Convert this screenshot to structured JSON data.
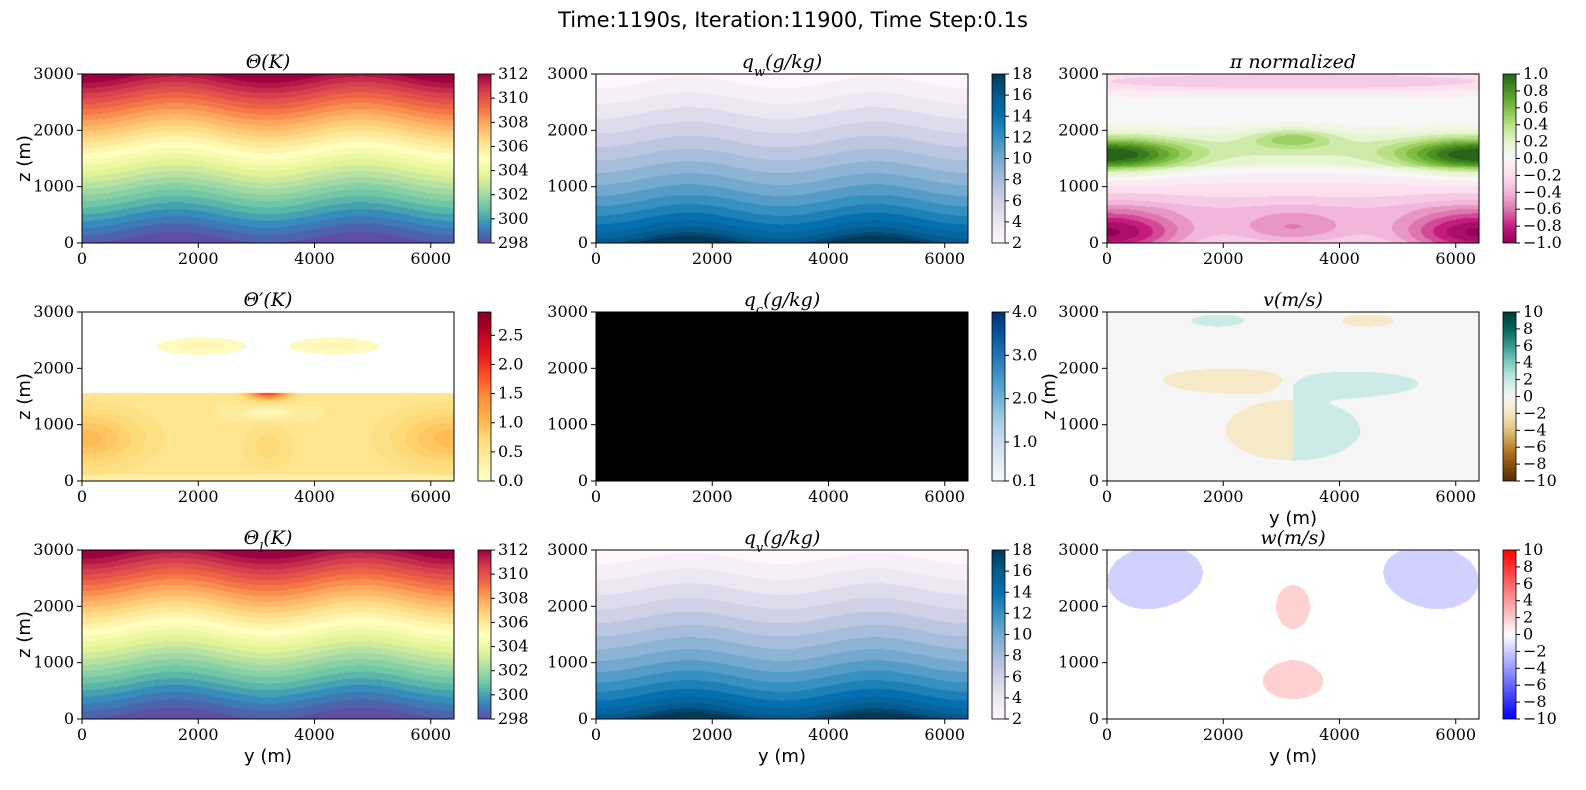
{
  "suptitle": "Time:1190s, Iteration:11900, Time Step:0.1s",
  "chart_data": [
    {
      "id": "theta",
      "type": "heatmap",
      "title": "Θ(K)",
      "row": 0,
      "col": 0,
      "xlabel": "",
      "ylabel": "z (m)",
      "xlim": [
        0,
        6400
      ],
      "ylim": [
        0,
        3000
      ],
      "xticks": [
        "0",
        "2000",
        "4000",
        "6000"
      ],
      "yticks": [
        "0",
        "1000",
        "2000",
        "3000"
      ],
      "clim": [
        298,
        312
      ],
      "colorbar_ticks": [
        "298",
        "300",
        "302",
        "304",
        "306",
        "308",
        "310",
        "312"
      ],
      "cmap": "Spectral_r",
      "field": "theta",
      "range": "298 to 312 K"
    },
    {
      "id": "qw",
      "type": "heatmap",
      "title": "q_w(g/kg)",
      "row": 0,
      "col": 1,
      "xlabel": "",
      "ylabel": "",
      "xlim": [
        0,
        6400
      ],
      "ylim": [
        0,
        3000
      ],
      "xticks": [
        "0",
        "2000",
        "4000",
        "6000"
      ],
      "yticks": [
        "0",
        "1000",
        "2000",
        "3000"
      ],
      "clim": [
        2,
        18
      ],
      "colorbar_ticks": [
        "2",
        "4",
        "6",
        "8",
        "10",
        "12",
        "14",
        "16",
        "18"
      ],
      "cmap": "PuBu",
      "field": "moisture"
    },
    {
      "id": "pi",
      "type": "heatmap",
      "title": "π normalized",
      "row": 0,
      "col": 2,
      "xlabel": "",
      "ylabel": "",
      "xlim": [
        0,
        6400
      ],
      "ylim": [
        0,
        3000
      ],
      "xticks": [
        "0",
        "2000",
        "4000",
        "6000"
      ],
      "yticks": [
        "0",
        "1000",
        "2000",
        "3000"
      ],
      "clim": [
        -1,
        1
      ],
      "colorbar_ticks": [
        "−1.0",
        "−0.8",
        "−0.6",
        "−0.4",
        "−0.2",
        "0.0",
        "0.2",
        "0.4",
        "0.6",
        "0.8",
        "1.0"
      ],
      "cmap": "PiYG",
      "field": "pi"
    },
    {
      "id": "thetap",
      "type": "heatmap",
      "title": "Θ′(K)",
      "row": 1,
      "col": 0,
      "xlabel": "",
      "ylabel": "z (m)",
      "xlim": [
        0,
        6400
      ],
      "ylim": [
        0,
        3000
      ],
      "xticks": [
        "0",
        "2000",
        "4000",
        "6000"
      ],
      "yticks": [
        "0",
        "1000",
        "2000",
        "3000"
      ],
      "clim": [
        0,
        2.9
      ],
      "colorbar_ticks": [
        "0.0",
        "0.5",
        "1.0",
        "1.5",
        "2.0",
        "2.5"
      ],
      "colorbar_tick_values": [
        0,
        0.5,
        1,
        1.5,
        2,
        2.5
      ],
      "cmap": "YlOrRd",
      "field": "thetap"
    },
    {
      "id": "qc",
      "type": "heatmap",
      "title": "q_c(g/kg)",
      "row": 1,
      "col": 1,
      "xlabel": "",
      "ylabel": "",
      "xlim": [
        0,
        6400
      ],
      "ylim": [
        0,
        3000
      ],
      "xticks": [
        "0",
        "2000",
        "4000",
        "6000"
      ],
      "yticks": [
        "0",
        "1000",
        "2000",
        "3000"
      ],
      "clim": [
        0.1,
        4.0
      ],
      "colorbar_ticks": [
        "0.1",
        "1.0",
        "2.0",
        "3.0",
        "4.0"
      ],
      "colorbar_tick_values": [
        0.1,
        1,
        2,
        3,
        4
      ],
      "cmap": "Blues",
      "field": "black"
    },
    {
      "id": "v",
      "type": "heatmap",
      "title": "v(m/s)",
      "row": 1,
      "col": 2,
      "xlabel": "y (m)",
      "ylabel": "z (m)",
      "xlim": [
        0,
        6400
      ],
      "ylim": [
        0,
        3000
      ],
      "xticks": [
        "0",
        "2000",
        "4000",
        "6000"
      ],
      "yticks": [
        "0",
        "1000",
        "2000",
        "3000"
      ],
      "clim": [
        -10,
        10
      ],
      "colorbar_ticks": [
        "−10",
        "−8",
        "−6",
        "−4",
        "−2",
        "0",
        "2",
        "4",
        "6",
        "8",
        "10"
      ],
      "cmap": "BrBG",
      "field": "v"
    },
    {
      "id": "thetal",
      "type": "heatmap",
      "title": "Θ_l(K)",
      "row": 2,
      "col": 0,
      "xlabel": "y (m)",
      "ylabel": "z (m)",
      "xlim": [
        0,
        6400
      ],
      "ylim": [
        0,
        3000
      ],
      "xticks": [
        "0",
        "2000",
        "4000",
        "6000"
      ],
      "yticks": [
        "0",
        "1000",
        "2000",
        "3000"
      ],
      "clim": [
        298,
        312
      ],
      "colorbar_ticks": [
        "298",
        "300",
        "302",
        "304",
        "306",
        "308",
        "310",
        "312"
      ],
      "cmap": "Spectral_r",
      "field": "theta"
    },
    {
      "id": "qv",
      "type": "heatmap",
      "title": "q_v(g/kg)",
      "row": 2,
      "col": 1,
      "xlabel": "y (m)",
      "ylabel": "",
      "xlim": [
        0,
        6400
      ],
      "ylim": [
        0,
        3000
      ],
      "xticks": [
        "0",
        "2000",
        "4000",
        "6000"
      ],
      "yticks": [
        "0",
        "1000",
        "2000",
        "3000"
      ],
      "clim": [
        2,
        18
      ],
      "colorbar_ticks": [
        "2",
        "4",
        "6",
        "8",
        "10",
        "12",
        "14",
        "16",
        "18"
      ],
      "cmap": "PuBu",
      "field": "moisture"
    },
    {
      "id": "w",
      "type": "heatmap",
      "title": "w(m/s)",
      "row": 2,
      "col": 2,
      "xlabel": "y (m)",
      "ylabel": "",
      "xlim": [
        0,
        6400
      ],
      "ylim": [
        0,
        3000
      ],
      "xticks": [
        "0",
        "2000",
        "4000",
        "6000"
      ],
      "yticks": [
        "0",
        "1000",
        "2000",
        "3000"
      ],
      "clim": [
        -10,
        10
      ],
      "colorbar_ticks": [
        "−10",
        "−8",
        "−6",
        "−4",
        "−2",
        "0",
        "2",
        "4",
        "6",
        "8",
        "10"
      ],
      "cmap": "bwr",
      "field": "w"
    }
  ]
}
